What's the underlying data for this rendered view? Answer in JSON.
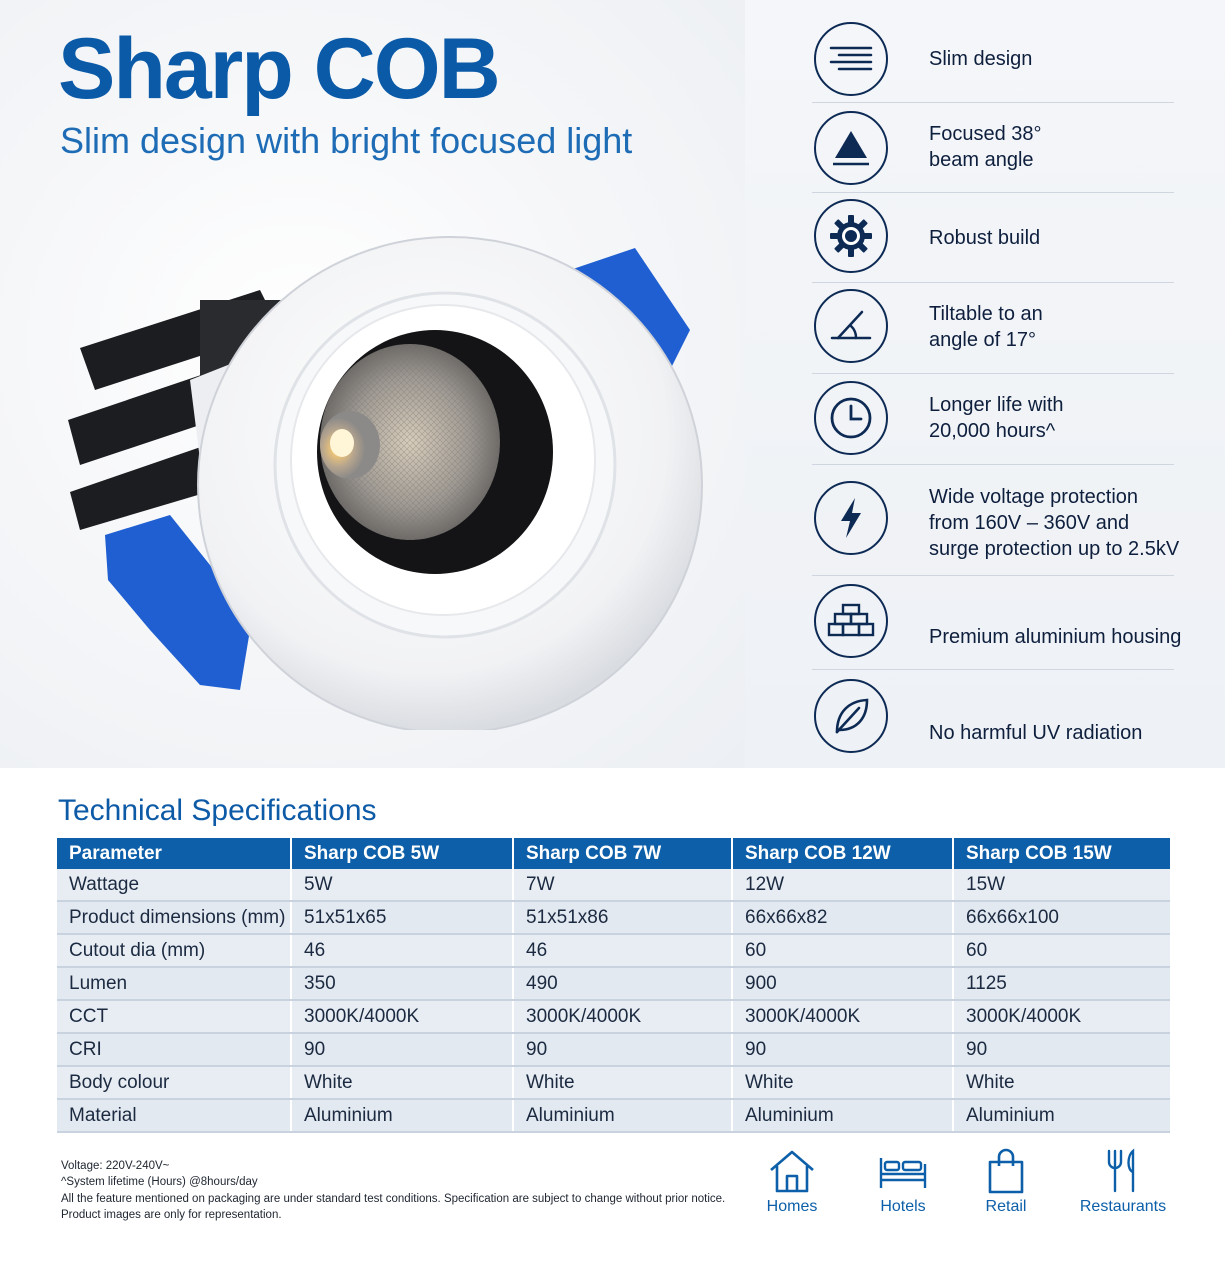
{
  "hero": {
    "title": "Sharp COB",
    "subtitle": "Slim design with bright focused light"
  },
  "features": [
    {
      "icon": "slim-lines-icon",
      "label": "Slim design"
    },
    {
      "icon": "beam-triangle-icon",
      "label": "Focused 38°\nbeam angle"
    },
    {
      "icon": "gear-icon",
      "label": "Robust build"
    },
    {
      "icon": "angle-icon",
      "label": "Tiltable to an\nangle of 17°"
    },
    {
      "icon": "clock-icon",
      "label": "Longer life with\n20,000 hours^"
    },
    {
      "icon": "lightning-icon",
      "label": "Wide voltage protection\nfrom 160V – 360V and\nsurge protection up to 2.5kV"
    },
    {
      "icon": "bricks-icon",
      "label": "Premium aluminium housing"
    },
    {
      "icon": "leaf-icon",
      "label": "No harmful UV radiation"
    }
  ],
  "specs": {
    "heading": "Technical Specifications",
    "headers": [
      "Parameter",
      "Sharp COB 5W",
      "Sharp COB 7W",
      "Sharp COB 12W",
      "Sharp COB 15W"
    ],
    "rows": [
      [
        "Wattage",
        "5W",
        "7W",
        "12W",
        "15W"
      ],
      [
        "Product dimensions (mm)",
        "51x51x65",
        "51x51x86",
        "66x66x82",
        "66x66x100"
      ],
      [
        "Cutout dia (mm)",
        "46",
        "46",
        "60",
        "60"
      ],
      [
        "Lumen",
        "350",
        "490",
        "900",
        "1125"
      ],
      [
        "CCT",
        "3000K/4000K",
        "3000K/4000K",
        "3000K/4000K",
        "3000K/4000K"
      ],
      [
        "CRI",
        "90",
        "90",
        "90",
        "90"
      ],
      [
        "Body colour",
        "White",
        "White",
        "White",
        "White"
      ],
      [
        "Material",
        "Aluminium",
        "Aluminium",
        "Aluminium",
        "Aluminium"
      ]
    ]
  },
  "notes": [
    "Voltage: 220V-240V~",
    "^System lifetime (Hours) @8hours/day",
    "All the feature mentioned on packaging are under standard test conditions. Specification are subject to change without prior notice.",
    "Product images are only for representation."
  ],
  "applications": [
    {
      "icon": "home-icon",
      "label": "Homes"
    },
    {
      "icon": "bed-icon",
      "label": "Hotels"
    },
    {
      "icon": "shopping-bag-icon",
      "label": "Retail"
    },
    {
      "icon": "cutlery-icon",
      "label": "Restaurants"
    }
  ],
  "colors": {
    "brand_blue": "#0a5aa8",
    "table_header": "#0c5fa8",
    "icon_navy": "#0d2a55",
    "clip_blue": "#1f5fd1"
  }
}
